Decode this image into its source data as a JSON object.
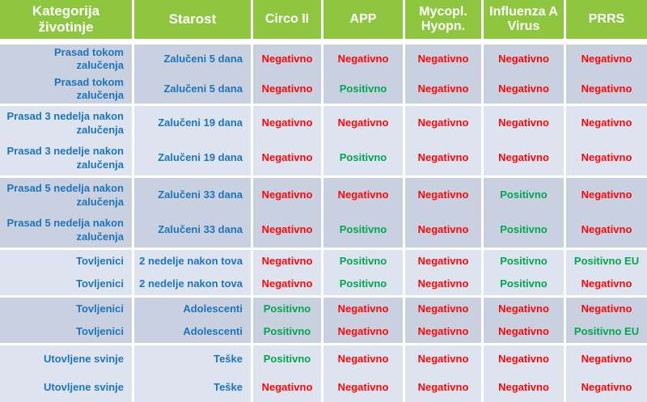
{
  "colors": {
    "header_green": "#8ec640",
    "row_band_dark": "#c9d1e0",
    "row_band_light": "#dee4ef",
    "category_text_blue": "#1b75bc",
    "negative_red": "#fe0606",
    "positive_green": "#00a651"
  },
  "table": {
    "columns": [
      "Kategorija životinje",
      "Starost",
      "Circo II",
      "APP",
      "Mycopl. Hyopn.",
      "Influenza A Virus",
      "PRRS"
    ],
    "result_keys": [
      "circo-ii",
      "app",
      "mycopl-hyopn",
      "influenza-a-virus",
      "prrs"
    ],
    "rows": [
      {
        "category": "Prasad tokom zalučenja",
        "age": "Zalučeni 5 dana",
        "results": [
          "Negativno",
          "Negativno",
          "Negativno",
          "Negativno",
          "Negativno"
        ]
      },
      {
        "category": "Prasad tokom zalučenja",
        "age": "Zalučeni 5 dana",
        "results": [
          "Negativno",
          "Positivno",
          "Negativno",
          "Negativno",
          "Negativno"
        ]
      },
      {
        "category": "Prasad 3 nedelja nakon zalučenja",
        "age": "Zalučeni 19 dana",
        "results": [
          "Negativno",
          "Negativno",
          "Negativno",
          "Negativno",
          "Negativno"
        ]
      },
      {
        "category": "Prasad 3 nedelje nakon zalučenja",
        "age": "Zalučeni 19 dana",
        "results": [
          "Negativno",
          "Positivno",
          "Negativno",
          "Negativno",
          "Negativno"
        ]
      },
      {
        "category": "Prasad 5 nedelja nakon zalučenja",
        "age": "Zalučeni 33 dana",
        "results": [
          "Negativno",
          "Negativno",
          "Negativno",
          "Positivno",
          "Negativno"
        ]
      },
      {
        "category": "Prasad 5 nedelja nakon zalučenja",
        "age": "Zalučeni 33 dana",
        "results": [
          "Negativno",
          "Positivno",
          "Negativno",
          "Positivno",
          "Negativno"
        ]
      },
      {
        "category": "Tovljenici",
        "age": "2 nedelje nakon tova",
        "results": [
          "Negativno",
          "Positivno",
          "Negativno",
          "Positivno",
          "Positivno EU"
        ]
      },
      {
        "category": "Tovljenici",
        "age": "2 nedelje nakon tova",
        "results": [
          "Negativno",
          "Positivno",
          "Negativno",
          "Positivno",
          "Negativno"
        ]
      },
      {
        "category": "Tovljenici",
        "age": "Adolescenti",
        "results": [
          "Positivno",
          "Negativno",
          "Negativno",
          "Negativno",
          "Negativno"
        ]
      },
      {
        "category": "Tovljenici",
        "age": "Adolescenti",
        "results": [
          "Positivno",
          "Negativno",
          "Negativno",
          "Negativno",
          "Positivno EU"
        ]
      },
      {
        "category": "Utovljene svinje",
        "age": "Teške",
        "results": [
          "Positivno",
          "Negativno",
          "Negativno",
          "Negativno",
          "Negativno"
        ]
      },
      {
        "category": "Utovljene svinje",
        "age": "Teške",
        "results": [
          "Negativno",
          "Negativno",
          "Negativno",
          "Negativno",
          "Negativno"
        ]
      }
    ]
  }
}
